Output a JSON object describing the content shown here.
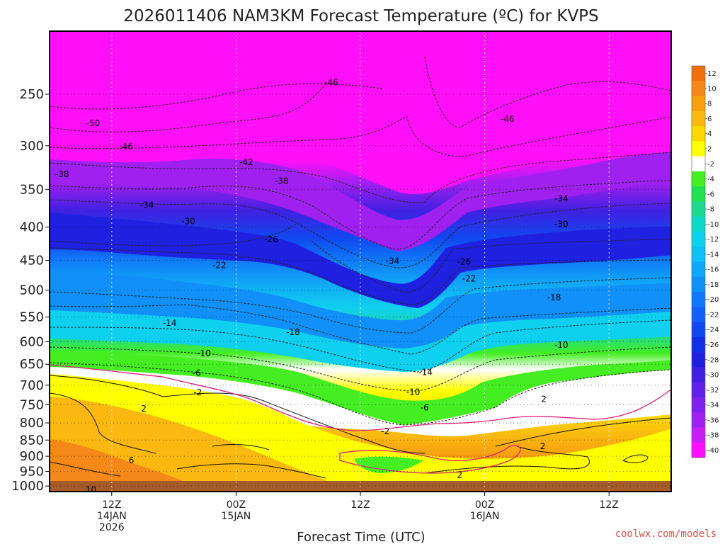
{
  "chart_data": {
    "type": "time-height contour",
    "title": "2026011406 NAM3KM Forecast Temperature (ºC) for KVPS",
    "xlabel": "Forecast Time (UTC)",
    "ylabel": "",
    "credit": "coolwx.com/models",
    "y_axis": {
      "scale": "pressure (log)",
      "ticks": [
        250,
        300,
        350,
        400,
        450,
        500,
        550,
        600,
        650,
        700,
        750,
        800,
        850,
        900,
        950,
        1000
      ],
      "range": [
        1020,
        200
      ]
    },
    "x_axis": {
      "range_hours": [
        0,
        60
      ],
      "ticks": [
        {
          "hour": 6,
          "label": "12Z",
          "label2": "14JAN",
          "label3": "2026"
        },
        {
          "hour": 18,
          "label": "00Z",
          "label2": "15JAN",
          "label3": ""
        },
        {
          "hour": 30,
          "label": "12Z",
          "label2": "",
          "label3": ""
        },
        {
          "hour": 42,
          "label": "00Z",
          "label2": "16JAN",
          "label3": ""
        },
        {
          "hour": 54,
          "label": "12Z",
          "label2": "",
          "label3": ""
        }
      ]
    },
    "colorbar": {
      "labels": [
        "12",
        "10",
        "8",
        "6",
        "4",
        "2",
        "-2",
        "-4",
        "-6",
        "-8",
        "-10",
        "-12",
        "-14",
        "-16",
        "-18",
        "-20",
        "-22",
        "-24",
        "-26",
        "-28",
        "-30",
        "-32",
        "-34",
        "-36",
        "-38",
        "-40"
      ],
      "colors": [
        "#f07010",
        "#f48818",
        "#f8a010",
        "#fab810",
        "#fcd800",
        "#ffff00",
        "#ffffff",
        "#44ee22",
        "#22e050",
        "#20d890",
        "#10d8c8",
        "#10d0f0",
        "#10c0f8",
        "#10a8f8",
        "#1090f8",
        "#1078f8",
        "#1060f8",
        "#1048f0",
        "#1030e8",
        "#2020e0",
        "#4020e0",
        "#6020e8",
        "#8020ec",
        "#a020f0",
        "#c820f4",
        "#ff10f8"
      ]
    },
    "contour_labels": [
      {
        "text": "-46",
        "hour": 27.2,
        "p": 240
      },
      {
        "text": "-46",
        "hour": 44.2,
        "p": 273
      },
      {
        "text": "-50",
        "hour": 4.2,
        "p": 277
      },
      {
        "text": "-46",
        "hour": 7.4,
        "p": 301
      },
      {
        "text": "-42",
        "hour": 19.0,
        "p": 318
      },
      {
        "text": "-38",
        "hour": 1.2,
        "p": 332
      },
      {
        "text": "-38",
        "hour": 22.4,
        "p": 340
      },
      {
        "text": "-34",
        "hour": 9.4,
        "p": 370
      },
      {
        "text": "-34",
        "hour": 49.4,
        "p": 362
      },
      {
        "text": "-30",
        "hour": 13.4,
        "p": 392
      },
      {
        "text": "-30",
        "hour": 49.4,
        "p": 396
      },
      {
        "text": "-26",
        "hour": 21.4,
        "p": 418
      },
      {
        "text": "-22",
        "hour": 16.4,
        "p": 458
      },
      {
        "text": "-26",
        "hour": 40.0,
        "p": 452
      },
      {
        "text": "-34",
        "hour": 33.1,
        "p": 451
      },
      {
        "text": "-22",
        "hour": 40.5,
        "p": 480
      },
      {
        "text": "-18",
        "hour": 48.7,
        "p": 513
      },
      {
        "text": "-14",
        "hour": 11.6,
        "p": 562
      },
      {
        "text": "-18",
        "hour": 23.5,
        "p": 580
      },
      {
        "text": "-10",
        "hour": 14.9,
        "p": 626
      },
      {
        "text": "-10",
        "hour": 49.4,
        "p": 607
      },
      {
        "text": "-6",
        "hour": 14.2,
        "p": 670
      },
      {
        "text": "-14",
        "hour": 36.3,
        "p": 669
      },
      {
        "text": "-2",
        "hour": 14.3,
        "p": 718
      },
      {
        "text": "-10",
        "hour": 35.1,
        "p": 717
      },
      {
        "text": "2",
        "hour": 47.7,
        "p": 735
      },
      {
        "text": "-6",
        "hour": 36.2,
        "p": 758
      },
      {
        "text": "2",
        "hour": 9.1,
        "p": 761
      },
      {
        "text": "-2",
        "hour": 32.4,
        "p": 824
      },
      {
        "text": "2",
        "hour": 47.6,
        "p": 869
      },
      {
        "text": "6",
        "hour": 7.9,
        "p": 914
      },
      {
        "text": "2",
        "hour": 39.6,
        "p": 962
      },
      {
        "text": "10",
        "hour": 4.0,
        "p": 1013
      }
    ]
  }
}
